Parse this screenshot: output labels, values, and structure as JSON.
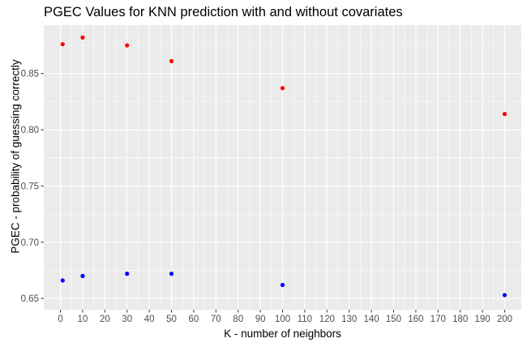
{
  "chart_data": {
    "type": "scatter",
    "title": "PGEC Values for KNN prediction with and without covariates",
    "xlabel": "K - number of neighbors",
    "ylabel": "PGEC - probability of guessing correctly",
    "xlim": [
      -7.5,
      207.5
    ],
    "ylim": [
      0.64,
      0.893
    ],
    "x_ticks": [
      0,
      10,
      20,
      30,
      40,
      50,
      60,
      70,
      80,
      90,
      100,
      110,
      120,
      130,
      140,
      150,
      160,
      170,
      180,
      190,
      200
    ],
    "y_ticks": [
      0.65,
      0.7,
      0.75,
      0.8,
      0.85
    ],
    "y_tick_labels": [
      "0.65",
      "0.70",
      "0.75",
      "0.80",
      "0.85"
    ],
    "grid": true,
    "legend": "none",
    "panel_background": "#ebebeb",
    "series": [
      {
        "color": "#ff0000",
        "x": [
          1,
          10,
          30,
          50,
          100,
          200
        ],
        "y": [
          0.876,
          0.882,
          0.875,
          0.861,
          0.837,
          0.814
        ]
      },
      {
        "color": "#0000ff",
        "x": [
          1,
          10,
          30,
          50,
          100,
          200
        ],
        "y": [
          0.666,
          0.67,
          0.672,
          0.672,
          0.662,
          0.653
        ]
      }
    ]
  }
}
